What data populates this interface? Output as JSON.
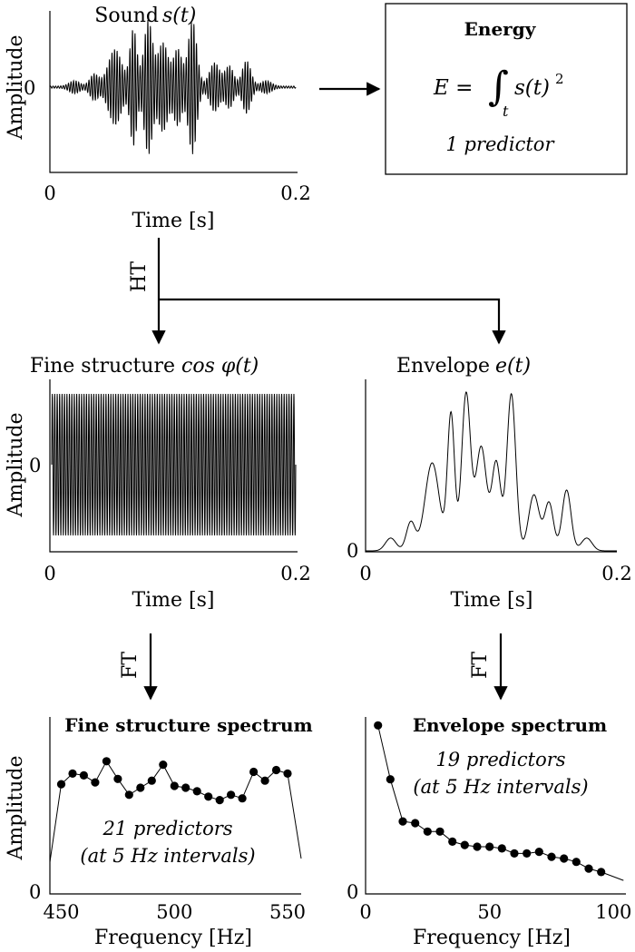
{
  "sound_panel": {
    "title_text": "Sound",
    "title_math": "s(t)",
    "ylabel": "Amplitude",
    "y_tick": "0",
    "x_ticks": [
      "0",
      "0.2"
    ],
    "xlabel": "Time [s]"
  },
  "energy_box": {
    "title": "Energy",
    "formula_lhs": "E =",
    "formula_sub": "t",
    "formula_rhs": "s(t)",
    "formula_exp": "2",
    "predictors": "1 predictor"
  },
  "transforms": {
    "hilbert": "HT",
    "fourier_left": "FT",
    "fourier_right": "FT"
  },
  "fine_structure_panel": {
    "title_text": "Fine structure",
    "title_math": "cos φ(t)",
    "ylabel": "Amplitude",
    "y_tick": "0",
    "x_ticks": [
      "0",
      "0.2"
    ],
    "xlabel": "Time [s]"
  },
  "envelope_panel": {
    "title_text": "Envelope",
    "title_math": "e(t)",
    "y_tick": "0",
    "x_ticks": [
      "0",
      "0.2"
    ],
    "xlabel": "Time [s]"
  },
  "fine_spectrum_panel": {
    "title": "Fine structure spectrum",
    "ylabel": "Amplitude",
    "y_tick": "0",
    "x_ticks": [
      "450",
      "500",
      "550"
    ],
    "xlabel": "Frequency [Hz]",
    "note_line1": "21 predictors",
    "note_line2": "(at 5 Hz intervals)"
  },
  "envelope_spectrum_panel": {
    "title": "Envelope spectrum",
    "y_tick": "0",
    "x_ticks": [
      "0",
      "50",
      "100"
    ],
    "xlabel": "Frequency [Hz]",
    "note_line1": "19 predictors",
    "note_line2": "(at 5 Hz intervals)"
  },
  "chart_data": [
    {
      "type": "line",
      "panel": "fine_structure_spectrum",
      "x": [
        450,
        455,
        460,
        465,
        470,
        475,
        480,
        485,
        490,
        495,
        500,
        505,
        510,
        515,
        520,
        525,
        530,
        535,
        540,
        545,
        550
      ],
      "y": [
        0.62,
        0.68,
        0.67,
        0.63,
        0.75,
        0.65,
        0.56,
        0.6,
        0.64,
        0.73,
        0.61,
        0.6,
        0.58,
        0.55,
        0.53,
        0.56,
        0.54,
        0.69,
        0.64,
        0.7,
        0.68
      ],
      "curve_ends": [
        {
          "x": 445,
          "y": 0.18
        },
        {
          "x": 556,
          "y": 0.2
        }
      ],
      "xlim": [
        445,
        556
      ],
      "ylim": [
        0,
        1
      ]
    },
    {
      "type": "line",
      "panel": "envelope_spectrum",
      "x": [
        5,
        10,
        15,
        20,
        25,
        30,
        35,
        40,
        45,
        50,
        55,
        60,
        65,
        70,
        75,
        80,
        85,
        90,
        95
      ],
      "y": [
        1.0,
        0.68,
        0.43,
        0.42,
        0.37,
        0.37,
        0.31,
        0.29,
        0.28,
        0.28,
        0.27,
        0.24,
        0.24,
        0.25,
        0.22,
        0.21,
        0.19,
        0.15,
        0.13
      ],
      "curve_end": {
        "x": 104,
        "y": 0.08
      },
      "xlim": [
        0,
        105
      ],
      "ylim": [
        0,
        1.05
      ]
    }
  ]
}
